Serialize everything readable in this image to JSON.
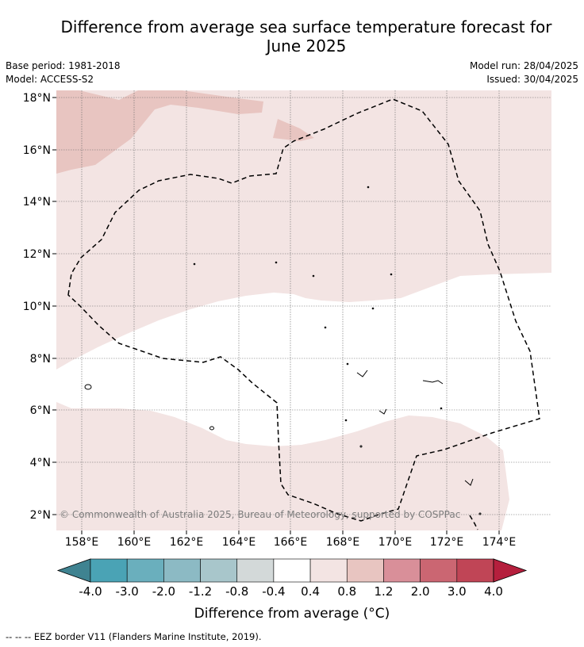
{
  "header": {
    "title_line1": "Difference from average sea surface temperature forecast for",
    "title_line2": "June 2025",
    "base_period": "Base period: 1981-2018",
    "model": "Model: ACCESS-S2",
    "model_run": "Model run: 28/04/2025",
    "issued": "Issued: 30/04/2025"
  },
  "map": {
    "lat_labels": [
      "18°N",
      "16°N",
      "14°N",
      "12°N",
      "10°N",
      "8°N",
      "6°N",
      "4°N",
      "2°N"
    ],
    "lon_labels": [
      "158°E",
      "160°E",
      "162°E",
      "164°E",
      "166°E",
      "168°E",
      "170°E",
      "172°E",
      "174°E"
    ],
    "copyright": "© Commonwealth of Australia 2025, Bureau of Meteorology, supported by COSPPac"
  },
  "colorbar": {
    "ticks": [
      "-4.0",
      "-3.0",
      "-2.0",
      "-1.2",
      "-0.8",
      "-0.4",
      "0.4",
      "0.8",
      "1.2",
      "2.0",
      "3.0",
      "4.0"
    ],
    "colors": [
      "#4aa3b5",
      "#6aafbd",
      "#8cbac4",
      "#a8c6cb",
      "#d3d9d9",
      "#ffffff",
      "#f3e4e3",
      "#e8c5c1",
      "#d98f99",
      "#cb6672",
      "#c04556"
    ],
    "under_color": "#3f8391",
    "over_color": "#b51f3d",
    "label": "Difference from average (°C)"
  },
  "legend": {
    "eez": "--  --  -- EEZ border V11 (Flanders Marine Institute, 2019)."
  }
}
